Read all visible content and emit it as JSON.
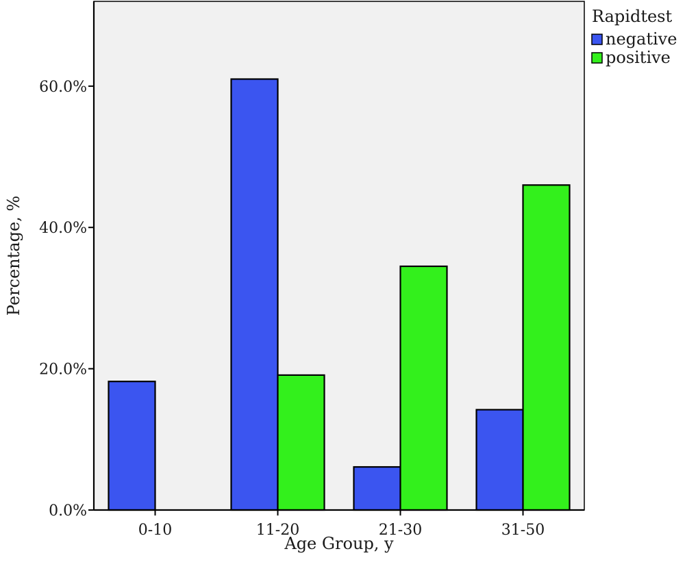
{
  "chart_data": {
    "type": "bar",
    "title": "",
    "xlabel": "Age Group, y",
    "ylabel": "Percentage, %",
    "categories": [
      "0-10",
      "11-20",
      "21-30",
      "31-50"
    ],
    "ylim": [
      0,
      72
    ],
    "yticks": [
      0,
      20,
      40,
      60
    ],
    "ytick_labels": [
      "0.0%",
      "20.0%",
      "40.0%",
      "60.0%"
    ],
    "grid": false,
    "legend": {
      "title": "Rapidtest",
      "placement": "top-right, outside plot"
    },
    "series": [
      {
        "name": "negative",
        "color": "#3b55f0",
        "values": [
          18.2,
          61.0,
          6.1,
          14.2
        ]
      },
      {
        "name": "positive",
        "color": "#33f01c",
        "values": [
          0,
          19.1,
          34.5,
          46.0
        ]
      }
    ],
    "colors": {
      "plot_background": "#f1f1f1",
      "axis": "#000000"
    }
  }
}
